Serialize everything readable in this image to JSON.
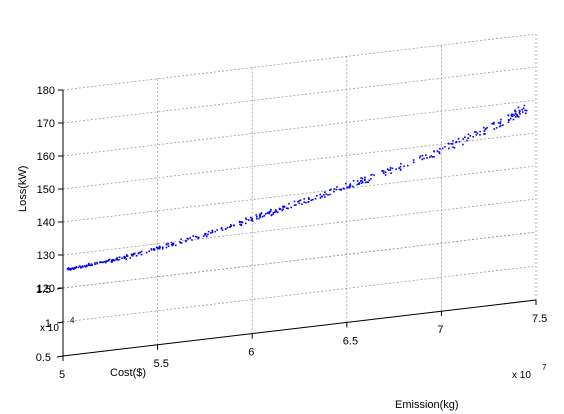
{
  "chart_data": {
    "type": "scatter",
    "view": "3d",
    "xlabel": "Emission(kg)",
    "ylabel": "Cost($)",
    "zlabel": "Loss(kW)",
    "x_exponent_label": "x 10",
    "x_exponent_power": "7",
    "y_exponent_label": "x 10",
    "y_exponent_power": "4",
    "x_ticks": [
      "5",
      "5.5",
      "6",
      "6.5",
      "7",
      "7.5"
    ],
    "y_ticks": [
      "0.5",
      "1",
      "1.5"
    ],
    "z_ticks": [
      "120",
      "130",
      "140",
      "150",
      "160",
      "170",
      "180"
    ],
    "xlim": [
      50000000,
      75000000
    ],
    "ylim": [
      5000,
      15000
    ],
    "zlim": [
      120,
      180
    ],
    "grid": true,
    "series_color": "#0000ff",
    "series": [
      {
        "x": [
          50200000,
          51500000,
          53000000,
          54500000,
          56000000,
          57500000,
          59000000,
          60500000,
          62000000,
          63500000,
          65000000,
          66500000,
          68000000,
          69500000,
          71000000,
          72500000,
          73500000,
          74500000
        ],
        "y": [
          13900,
          13900,
          13900,
          13900,
          13900,
          13900,
          13900,
          13900,
          13900,
          13900,
          13900,
          13900,
          13900,
          13900,
          13900,
          13900,
          13900,
          13900
        ],
        "z": [
          128,
          128.6,
          129.5,
          130.6,
          132,
          133.7,
          135.5,
          137.4,
          139.3,
          141.3,
          143.3,
          145.3,
          147.5,
          150,
          152.7,
          155.7,
          158,
          160.5
        ]
      }
    ]
  }
}
